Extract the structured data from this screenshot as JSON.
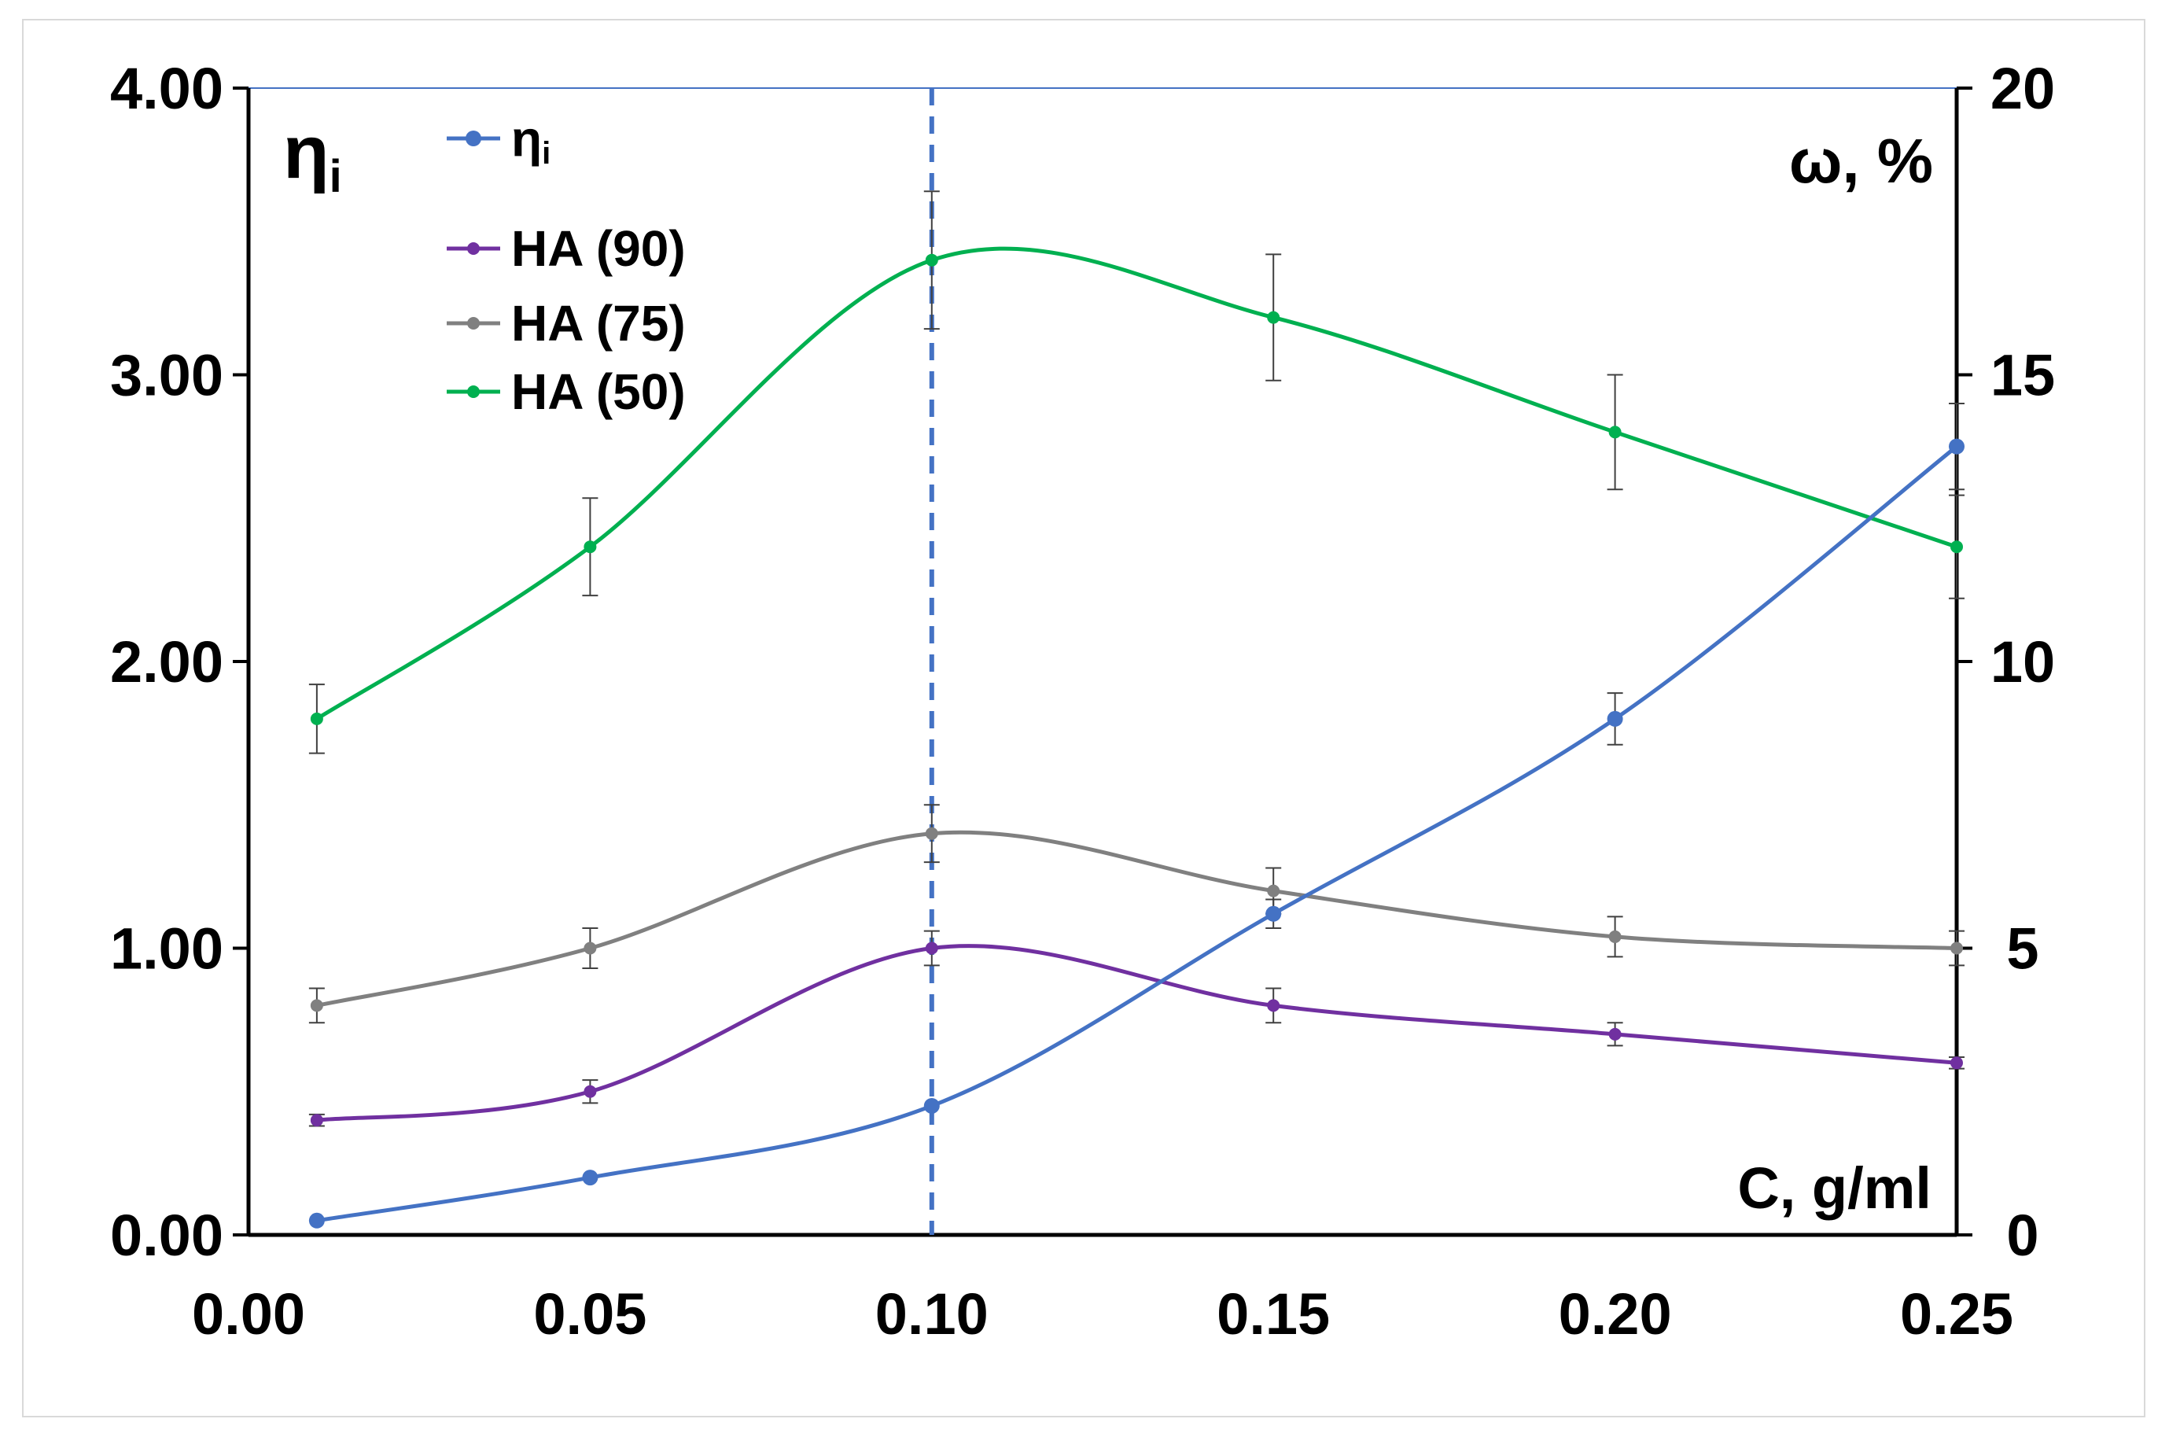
{
  "chart_data": {
    "type": "line",
    "x": [
      0.01,
      0.05,
      0.1,
      0.15,
      0.2,
      0.25
    ],
    "xlim": [
      0.0,
      0.25
    ],
    "x_ticks": [
      "0.00",
      "0.05",
      "0.10",
      "0.15",
      "0.20",
      "0.25"
    ],
    "y_left": {
      "label": "ηi",
      "label_main": "η",
      "label_sub": "i",
      "lim": [
        0,
        4
      ],
      "ticks": [
        "0.00",
        "1.00",
        "2.00",
        "3.00",
        "4.00"
      ]
    },
    "y_right": {
      "label": "ω, %",
      "lim": [
        0,
        20
      ],
      "ticks": [
        "0",
        "5",
        "10",
        "15",
        "20"
      ]
    },
    "x_axis_label": "C, g/ml",
    "reference_line": {
      "x": 0.1,
      "style": "dashed",
      "color": "#4472c4"
    },
    "legend": {
      "placement": "top-left",
      "entries": [
        {
          "main": "η",
          "sub": "i"
        },
        {
          "main": "HA (90)"
        },
        {
          "main": "HA (75)"
        },
        {
          "main": "HA (50)"
        }
      ]
    },
    "series": [
      {
        "name": "ηi",
        "axis": "left",
        "color": "#4472c4",
        "values": [
          0.05,
          0.2,
          0.45,
          1.12,
          1.8,
          2.75
        ],
        "errors": [
          0,
          0,
          0,
          0.05,
          0.09,
          0.15
        ]
      },
      {
        "name": "HA (90)",
        "axis": "right",
        "color": "#7030a0",
        "values": [
          2.0,
          2.5,
          5.0,
          4.0,
          3.5,
          3.0
        ],
        "errors": [
          0.1,
          0.2,
          0.3,
          0.3,
          0.2,
          0.1
        ]
      },
      {
        "name": "HA (75)",
        "axis": "right",
        "color": "#808080",
        "values": [
          4.0,
          5.0,
          7.0,
          6.0,
          5.2,
          5.0
        ],
        "errors": [
          0.3,
          0.35,
          0.5,
          0.4,
          0.35,
          0.3
        ]
      },
      {
        "name": "HA (50)",
        "axis": "right",
        "color": "#00b050",
        "values": [
          9.0,
          12.0,
          17.0,
          16.0,
          14.0,
          12.0
        ],
        "errors": [
          0.6,
          0.85,
          1.2,
          1.1,
          1.0,
          0.9
        ]
      }
    ]
  }
}
